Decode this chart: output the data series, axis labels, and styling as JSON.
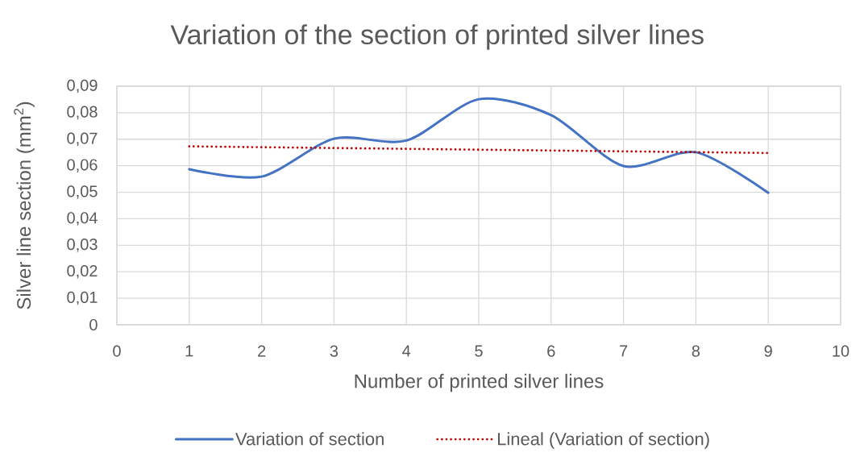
{
  "chart_data": {
    "type": "line",
    "title": "Variation of the section of printed silver lines",
    "xlabel": "Number of printed silver lines",
    "ylabel": "Silver line section (mm$^{2}$)",
    "x": [
      1,
      2,
      3,
      4,
      5,
      6,
      7,
      8,
      9
    ],
    "series": [
      {
        "name": "Variation of section",
        "color": "#4472c4",
        "values": [
          0.0587,
          0.0559,
          0.0702,
          0.0695,
          0.0851,
          0.0791,
          0.0599,
          0.0651,
          0.0498
        ]
      },
      {
        "name": "Lineal (Variation of section)",
        "type": "line",
        "color": "#c00000",
        "line_style": "dotted",
        "x": [
          1,
          9
        ],
        "values": [
          0.0673,
          0.0648
        ]
      }
    ],
    "xlim": [
      0,
      10
    ],
    "xticks": [
      0,
      1,
      2,
      3,
      4,
      5,
      6,
      7,
      8,
      9,
      10
    ],
    "ylim": [
      0,
      0.09
    ],
    "yticks": [
      0,
      {
        "value": 0.01,
        "label": "0,01"
      },
      {
        "value": 0.02,
        "label": "0,02"
      },
      {
        "value": 0.03,
        "label": "0,03"
      },
      {
        "value": 0.04,
        "label": "0,04"
      },
      {
        "value": 0.05,
        "label": "0,05"
      },
      {
        "value": 0.06,
        "label": "0,06"
      },
      {
        "value": 0.07,
        "label": "0,07"
      },
      {
        "value": 0.08,
        "label": "0,08"
      },
      {
        "value": 0.09,
        "label": "0,09"
      }
    ],
    "grid": true,
    "legend": "bottom"
  }
}
